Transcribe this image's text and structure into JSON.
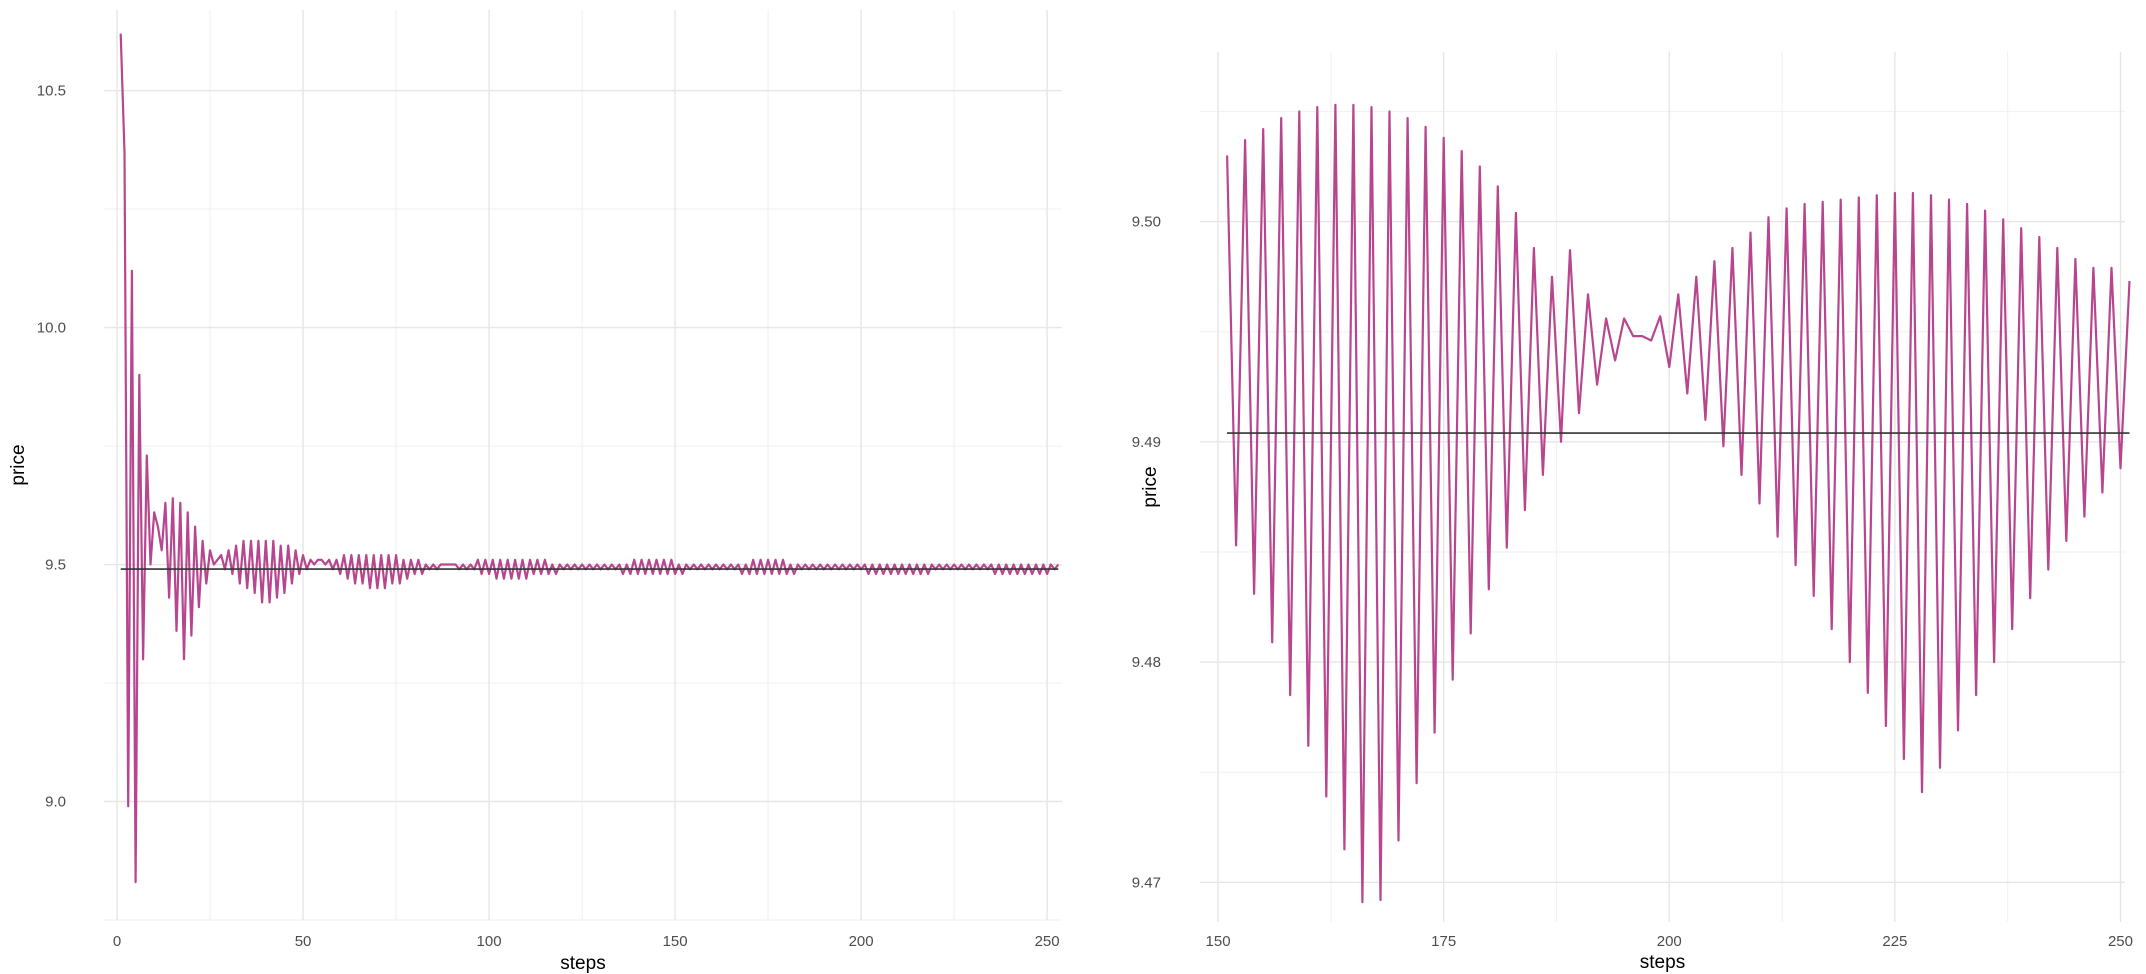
{
  "colors": {
    "series": "#b8468f",
    "reference": "#333333",
    "grid_major": "#e6e6e6",
    "grid_minor": "#f2f2f2",
    "tick_text": "#4d4d4d"
  },
  "chart_data": [
    {
      "type": "line",
      "xlabel": "steps",
      "ylabel": "price",
      "xlim": [
        -3.5,
        254
      ],
      "ylim": [
        8.75,
        10.67
      ],
      "xticks": [
        0,
        50,
        100,
        150,
        200,
        250
      ],
      "yticks": [
        9.0,
        9.5,
        10.0,
        10.5
      ],
      "x_tick_labels": [
        "0",
        "50",
        "100",
        "150",
        "200",
        "250"
      ],
      "y_tick_labels": [
        "9.0",
        "9.5",
        "10.0",
        "10.5"
      ],
      "grid": true,
      "legend": "none",
      "equilibrium_price": 9.4904,
      "series": [
        {
          "x_start": 1,
          "x_step": 1,
          "values": [
            10.62,
            10.37,
            8.99,
            10.12,
            8.83,
            9.9,
            9.3,
            9.73,
            9.5,
            9.61,
            9.58,
            9.53,
            9.63,
            9.43,
            9.64,
            9.36,
            9.63,
            9.3,
            9.61,
            9.35,
            9.58,
            9.41,
            9.55,
            9.46,
            9.53,
            9.5,
            9.51,
            9.52,
            9.49,
            9.53,
            9.48,
            9.54,
            9.46,
            9.55,
            9.45,
            9.55,
            9.44,
            9.55,
            9.42,
            9.55,
            9.42,
            9.55,
            9.43,
            9.54,
            9.44,
            9.54,
            9.46,
            9.53,
            9.48,
            9.52,
            9.49,
            9.51,
            9.5,
            9.51,
            9.51,
            9.5,
            9.51,
            9.49,
            9.51,
            9.48,
            9.52,
            9.47,
            9.52,
            9.46,
            9.52,
            9.46,
            9.52,
            9.45,
            9.52,
            9.45,
            9.52,
            9.45,
            9.52,
            9.46,
            9.52,
            9.46,
            9.51,
            9.47,
            9.51,
            9.48,
            9.51,
            9.48,
            9.5,
            9.49,
            9.5,
            9.49,
            9.5,
            9.5,
            9.5,
            9.5,
            9.5,
            9.49,
            9.5,
            9.49,
            9.5,
            9.49,
            9.51,
            9.48,
            9.51,
            9.48,
            9.51,
            9.47,
            9.51,
            9.47,
            9.51,
            9.47,
            9.51,
            9.47,
            9.51,
            9.47,
            9.51,
            9.48,
            9.51,
            9.48,
            9.51,
            9.48,
            9.5,
            9.48,
            9.5,
            9.49,
            9.5,
            9.49,
            9.5,
            9.49,
            9.5,
            9.49,
            9.5,
            9.49,
            9.5,
            9.49,
            9.5,
            9.49,
            9.5,
            9.49,
            9.5,
            9.48,
            9.5,
            9.48,
            9.51,
            9.48,
            9.51,
            9.48,
            9.51,
            9.48,
            9.51,
            9.48,
            9.51,
            9.48,
            9.51,
            9.48,
            9.5,
            9.48,
            9.5,
            9.49,
            9.5,
            9.49,
            9.5,
            9.49,
            9.5,
            9.49,
            9.5,
            9.49,
            9.5,
            9.49,
            9.5,
            9.49,
            9.5,
            9.48,
            9.5,
            9.48,
            9.51,
            9.48,
            9.51,
            9.48,
            9.51,
            9.48,
            9.51,
            9.48,
            9.51,
            9.48,
            9.5,
            9.48,
            9.5,
            9.49,
            9.5,
            9.49,
            9.5,
            9.49,
            9.5,
            9.49,
            9.5,
            9.49,
            9.5,
            9.49,
            9.5,
            9.49,
            9.5,
            9.49,
            9.5,
            9.49,
            9.5,
            9.48,
            9.5,
            9.48,
            9.5,
            9.48,
            9.5,
            9.48,
            9.5,
            9.48,
            9.5,
            9.48,
            9.5,
            9.48,
            9.5,
            9.48,
            9.5,
            9.48,
            9.5,
            9.49,
            9.5,
            9.49,
            9.5,
            9.49,
            9.5,
            9.49,
            9.5,
            9.49,
            9.5,
            9.49,
            9.5,
            9.49,
            9.5,
            9.49,
            9.5,
            9.48,
            9.5,
            9.48,
            9.5,
            9.48,
            9.5,
            9.48,
            9.5,
            9.48,
            9.5,
            9.48,
            9.5,
            9.48,
            9.5,
            9.48,
            9.5,
            9.49,
            9.5
          ]
        }
      ]
    },
    {
      "type": "line",
      "xlabel": "steps",
      "ylabel": "price",
      "xlim": [
        148,
        250.5
      ],
      "ylim": [
        9.4682,
        9.5077
      ],
      "xticks": [
        150,
        175,
        200,
        225,
        250
      ],
      "yticks": [
        9.47,
        9.48,
        9.49,
        9.5
      ],
      "x_tick_labels": [
        "150",
        "175",
        "200",
        "225",
        "250"
      ],
      "y_tick_labels": [
        "9.47",
        "9.48",
        "9.49",
        "9.50"
      ],
      "grid": true,
      "legend": "none",
      "equilibrium_price": 9.4904,
      "series": [
        {
          "x_start": 151,
          "x_step": 1,
          "values": [
            9.503,
            9.4853,
            9.5037,
            9.4831,
            9.5042,
            9.4809,
            9.5047,
            9.4785,
            9.505,
            9.4762,
            9.5052,
            9.4739,
            9.5053,
            9.4715,
            9.5053,
            9.4691,
            9.5052,
            9.4692,
            9.505,
            9.4719,
            9.5047,
            9.4745,
            9.5043,
            9.4768,
            9.5038,
            9.4792,
            9.5032,
            9.4813,
            9.5025,
            9.4833,
            9.5016,
            9.4852,
            9.5004,
            9.4869,
            9.4988,
            9.4885,
            9.4975,
            9.49,
            9.4987,
            9.4913,
            9.4967,
            9.4926,
            9.4956,
            9.4937,
            9.4956,
            9.4948,
            9.4948,
            9.4946,
            9.4957,
            9.4934,
            9.4967,
            9.4922,
            9.4975,
            9.491,
            9.4982,
            9.4898,
            9.4988,
            9.4885,
            9.4995,
            9.4872,
            9.5002,
            9.4857,
            9.5006,
            9.4844,
            9.5008,
            9.483,
            9.5009,
            9.4815,
            9.501,
            9.48,
            9.5011,
            9.4786,
            9.5012,
            9.4771,
            9.5013,
            9.4756,
            9.5013,
            9.4741,
            9.5012,
            9.4752,
            9.501,
            9.4769,
            9.5008,
            9.4785,
            9.5005,
            9.48,
            9.5001,
            9.4815,
            9.4997,
            9.4829,
            9.4993,
            9.4842,
            9.4988,
            9.4855,
            9.4983,
            9.4866,
            9.4979,
            9.4877,
            9.4979,
            9.4888,
            9.4973
          ]
        }
      ]
    }
  ]
}
